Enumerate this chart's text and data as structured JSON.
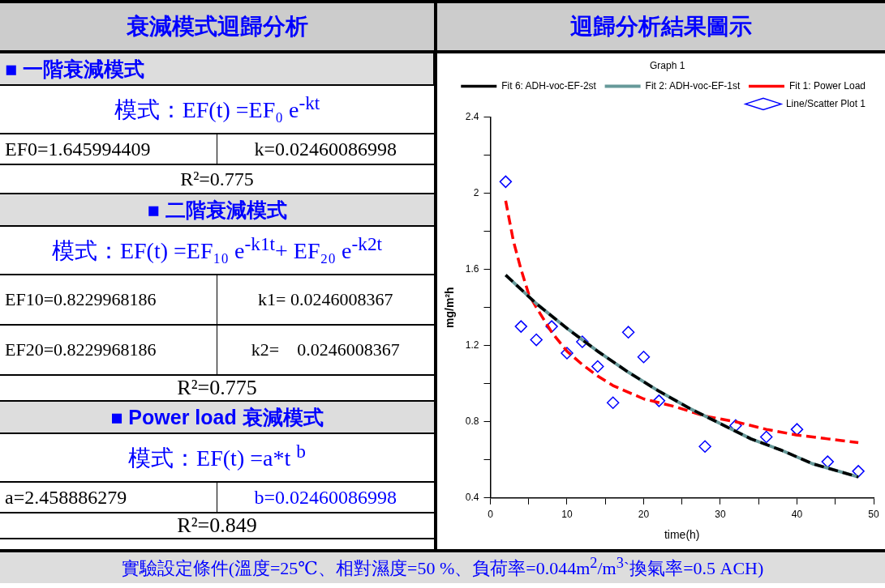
{
  "chart_data": [
    {
      "type": "other",
      "title": "衰減模式迴歸分析",
      "annotations": [
        "■ 一階衰減模式",
        "模式：EF(t) =EF₀ e$^{-kt}$",
        "EF0=1.645994409",
        "k=0.02460086998",
        "R²=0.775",
        "■ 二階衰減模式",
        "模式：EF(t) =EF₁₀ e$^{-k1t}$+ EF₂₀ e$^{-k2t}$",
        "EF10=0.8229968186",
        "k1= 0.0246008367",
        "EF20=0.8229968186",
        "k2=    0.0246008367",
        "R²=0.775",
        "■ Power load 衰減模式",
        "模式：EF(t) =a*t $^{b}$",
        "a=2.458886279",
        "b=0.02460086998",
        "R²=0.849",
        "實驗設定條件(溫度=25℃、相對濕度=50 %、負荷率=0.044m$^{2}$/m$^{3}$`換氣率=0.5 ACH)"
      ]
    },
    {
      "type": "scatter",
      "title": "迴歸分析結果圖示",
      "xlabel": "time(h)",
      "ylabel": "mg/m²h",
      "legend": "top right",
      "legend_title": "Graph 1",
      "grid": false,
      "xlim": [
        0,
        50
      ],
      "xticks": [
        0,
        {
          "value": 5,
          "label": null
        },
        10,
        {
          "value": 15,
          "label": null
        },
        20,
        {
          "value": 25,
          "label": null
        },
        30,
        {
          "value": 35,
          "label": null
        },
        40,
        {
          "value": 45,
          "label": null
        },
        50
      ],
      "ylim": [
        0.4,
        2.4
      ],
      "yticks": [
        0.4,
        {
          "value": 0.6,
          "label": null
        },
        0.8,
        {
          "value": 1.0,
          "label": null
        },
        1.2,
        {
          "value": 1.4,
          "label": null
        },
        1.6,
        {
          "value": 1.8,
          "label": null
        },
        2,
        {
          "value": 2.2,
          "label": null
        },
        2.4
      ],
      "series": [
        {
          "name": "Line/Scatter Plot 1",
          "type": "scatter",
          "color": "#0000ff",
          "marker": "diamond",
          "x": [
            2,
            4,
            6,
            8,
            10,
            12,
            14,
            16,
            18,
            20,
            22,
            28,
            32,
            36,
            40,
            44,
            48
          ],
          "values": [
            2.06,
            1.3,
            1.23,
            1.3,
            1.16,
            1.22,
            1.09,
            0.9,
            1.27,
            1.14,
            0.91,
            0.67,
            0.78,
            0.72,
            0.76,
            0.59,
            0.54
          ]
        },
        {
          "name": "Fit 1: Power Load",
          "type": "line",
          "color": "#ff0000",
          "line_style": "dashed",
          "marker": "none",
          "x": [
            2,
            3,
            4,
            5,
            6,
            8,
            10,
            12,
            14,
            16,
            20,
            24,
            28,
            32,
            36,
            40,
            44,
            48
          ],
          "values": [
            1.96,
            1.75,
            1.6,
            1.47,
            1.4,
            1.27,
            1.17,
            1.1,
            1.04,
            0.99,
            0.92,
            0.88,
            0.83,
            0.8,
            0.76,
            0.73,
            0.71,
            0.69
          ]
        },
        {
          "name": "Fit 2: ADH-voc-EF-1st",
          "type": "line",
          "color": "#669999",
          "line_style": "solid",
          "marker": "none",
          "x": [
            2,
            6,
            10,
            14,
            18,
            22,
            26,
            30,
            34,
            38,
            42,
            48
          ],
          "values": [
            1.57,
            1.42,
            1.29,
            1.17,
            1.06,
            0.96,
            0.87,
            0.79,
            0.71,
            0.65,
            0.58,
            0.51
          ]
        },
        {
          "name": "Fit 6: ADH-voc-EF-2st",
          "type": "line",
          "color": "#000000",
          "line_style": "dashed",
          "marker": "none",
          "x": [
            2,
            6,
            10,
            14,
            18,
            22,
            26,
            30,
            34,
            38,
            42,
            48
          ],
          "values": [
            1.57,
            1.42,
            1.29,
            1.17,
            1.06,
            0.96,
            0.87,
            0.79,
            0.71,
            0.65,
            0.58,
            0.51
          ]
        }
      ]
    }
  ]
}
